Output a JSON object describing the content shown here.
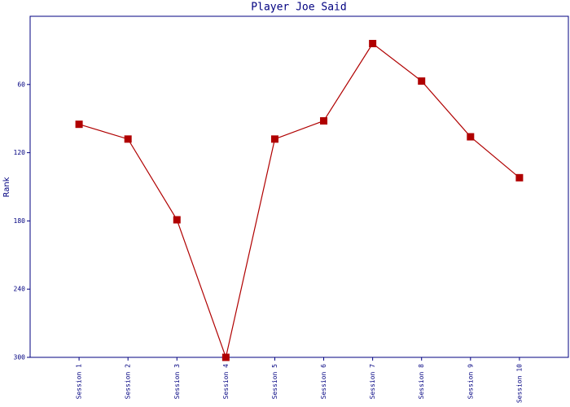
{
  "chart_data": {
    "type": "line",
    "title": "Player Joe Said",
    "y_label": "Rank",
    "categories": [
      "Session 1",
      "Session 2",
      "Session 3",
      "Session 4",
      "Session 5",
      "Session 6",
      "Session 7",
      "Session 8",
      "Session 9",
      "Session 10"
    ],
    "series": [
      {
        "name": "Rank",
        "color": "#b00000",
        "values": [
          95,
          108,
          179,
          300,
          108,
          92,
          24,
          57,
          106,
          142
        ]
      }
    ],
    "ylim": [
      300,
      0
    ],
    "yticks": [
      60,
      120,
      180,
      240,
      300
    ]
  }
}
